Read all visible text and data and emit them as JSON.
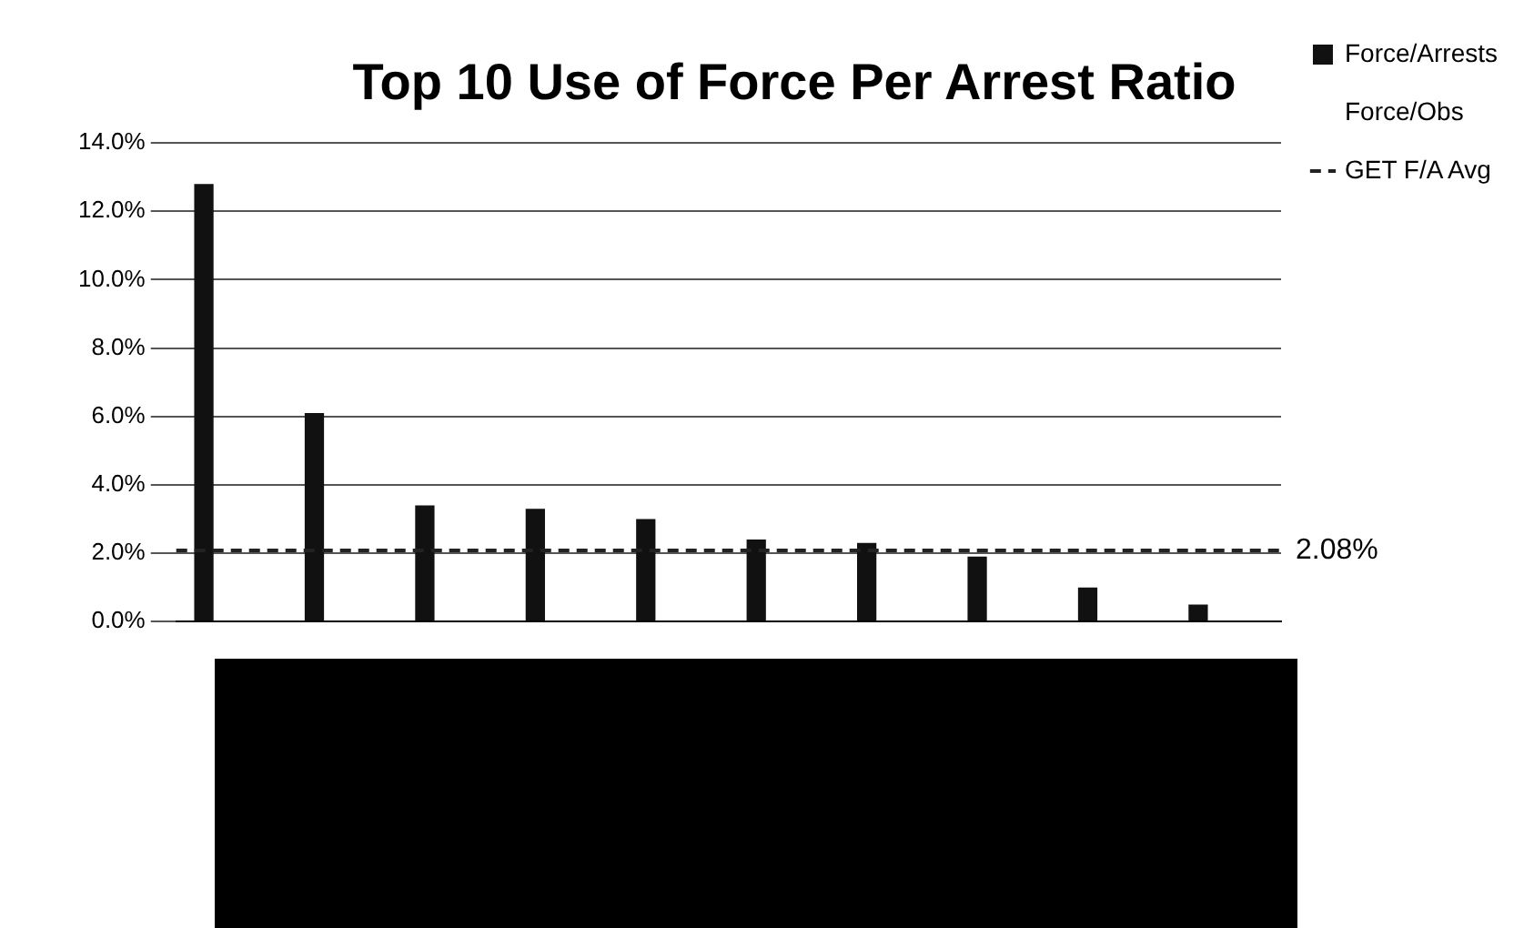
{
  "chart_data": {
    "type": "bar",
    "title": "Top 10 Use of Force Per Arrest Ratio",
    "categories": [
      null,
      null,
      null,
      null,
      null,
      null,
      null,
      null,
      null,
      null
    ],
    "series": [
      {
        "name": "Force/Arrests",
        "color": "#111111",
        "values": [
          12.8,
          6.1,
          3.4,
          3.3,
          3.0,
          2.4,
          2.3,
          1.9,
          1.0,
          0.5
        ]
      },
      {
        "name": "Force/Obs",
        "values": [
          null,
          null,
          null,
          null,
          null,
          null,
          null,
          null,
          null,
          null
        ]
      }
    ],
    "ylim": [
      0,
      14
    ],
    "yticks": [
      {
        "value": 0,
        "label": "0.0%"
      },
      {
        "value": 2,
        "label": "2.0%"
      },
      {
        "value": 4,
        "label": "4.0%"
      },
      {
        "value": 6,
        "label": "6.0%"
      },
      {
        "value": 8,
        "label": "8.0%"
      },
      {
        "value": 10,
        "label": "10.0%"
      },
      {
        "value": 12,
        "label": "12.0%"
      },
      {
        "value": 14,
        "label": "14.0%"
      }
    ],
    "ref_lines": [
      {
        "axis": "y",
        "value": 2.08,
        "label": "GET F/A Avg",
        "color": "#222222",
        "line_style": "dashed"
      }
    ],
    "annotations": [
      "2.08%"
    ],
    "grid": "y",
    "legend": "right"
  }
}
